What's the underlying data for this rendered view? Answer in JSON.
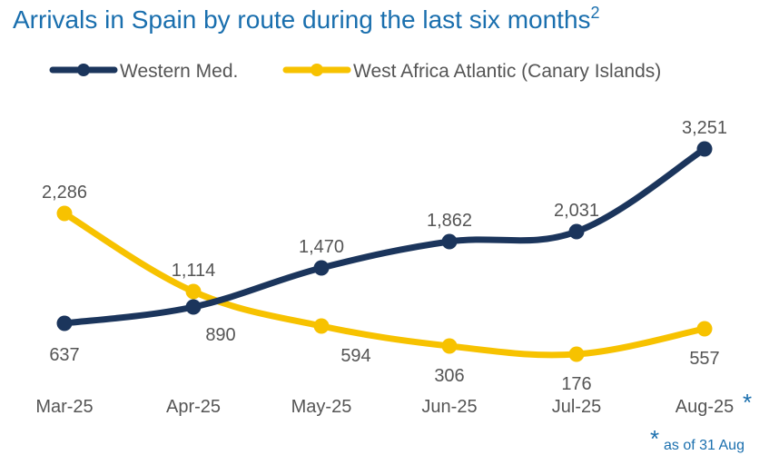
{
  "title": "Arrivals in Spain by route during the last six months",
  "title_superscript": "2",
  "footnote_marker": "*",
  "footnote_text": "as of 31 Aug",
  "chart_data": {
    "type": "line",
    "title": "Arrivals in Spain by route during the last six months",
    "categories": [
      "Mar-25",
      "Apr-25",
      "May-25",
      "Jun-25",
      "Jul-25",
      "Aug-25"
    ],
    "category_marker": {
      "Aug-25": "*"
    },
    "series": [
      {
        "name": "Western Med.",
        "color": "#1b355c",
        "values": [
          637,
          890,
          1470,
          1862,
          2031,
          3251
        ]
      },
      {
        "name": "West Africa Atlantic (Canary Islands)",
        "color": "#f7c200",
        "values": [
          2286,
          1114,
          594,
          306,
          176,
          557
        ]
      }
    ],
    "legend_position": "top",
    "grid": false,
    "xlabel": "",
    "ylabel": ""
  }
}
